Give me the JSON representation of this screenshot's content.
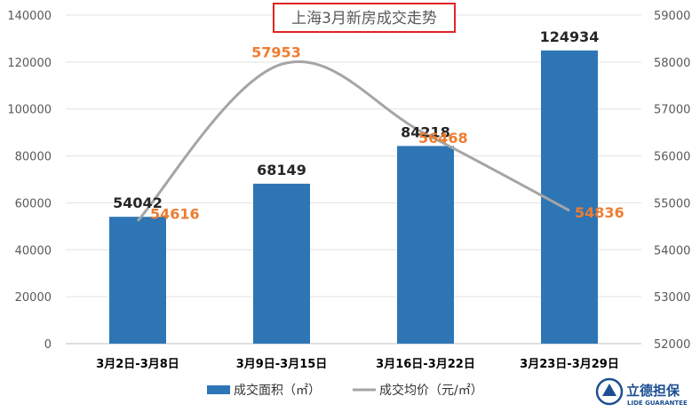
{
  "chart_data": {
    "type": "bar+line",
    "title": "上海3月新房成交走势",
    "categories": [
      "3月2日-3月8日",
      "3月9日-3月15日",
      "3月16日-3月22日",
      "3月23日-3月29日"
    ],
    "series": [
      {
        "name": "成交面积（㎡）",
        "type": "bar",
        "axis": "left",
        "color": "#2E75B6",
        "values": [
          54042,
          68149,
          84218,
          124934
        ]
      },
      {
        "name": "成交均价（元/㎡）",
        "type": "line",
        "axis": "right",
        "color": "#A5A5A5",
        "label_color": "#ED7D31",
        "values": [
          54616,
          57953,
          56468,
          54836
        ]
      }
    ],
    "y_left": {
      "min": 0,
      "max": 140000,
      "step": 20000,
      "ticks": [
        "0",
        "20000",
        "40000",
        "60000",
        "80000",
        "100000",
        "120000",
        "140000"
      ]
    },
    "y_right": {
      "min": 52000,
      "max": 59000,
      "step": 1000,
      "ticks": [
        "52000",
        "53000",
        "54000",
        "55000",
        "56000",
        "57000",
        "58000",
        "59000"
      ]
    },
    "legend_position": "bottom",
    "grid": true
  },
  "logo": {
    "text_cn": "立德担保",
    "text_en": "LIDE GUARANTEE"
  }
}
